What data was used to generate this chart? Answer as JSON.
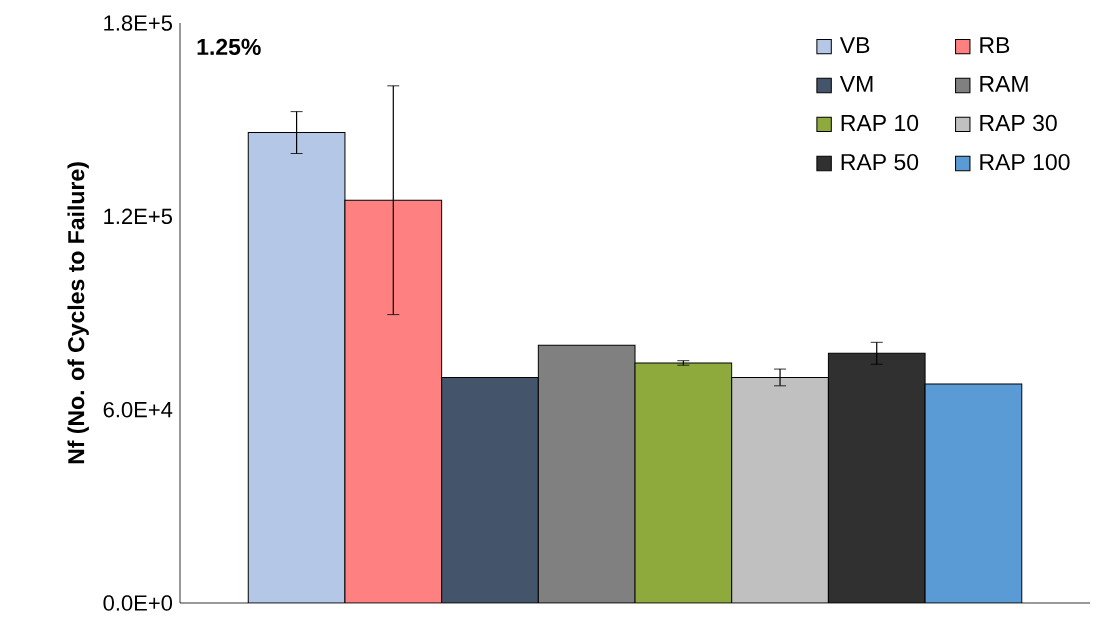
{
  "chart_data": {
    "type": "bar",
    "ylabel": "Nf (No. of Cycles to Failure)",
    "categories": [
      null
    ],
    "series": [
      {
        "name": "VB",
        "color": "#b4c7e7",
        "values": [
          146000
        ],
        "errors": [
          6500
        ]
      },
      {
        "name": "RB",
        "color": "#ff8080",
        "values": [
          125000
        ],
        "errors": [
          35500
        ]
      },
      {
        "name": "VM",
        "color": "#44546a",
        "values": [
          70000
        ],
        "errors": [
          null
        ]
      },
      {
        "name": "RAM",
        "color": "#808080",
        "values": [
          80000
        ],
        "errors": [
          null
        ]
      },
      {
        "name": "RAP 10",
        "color": "#8faa3c",
        "values": [
          74500
        ],
        "errors": [
          700
        ]
      },
      {
        "name": "RAP 30",
        "color": "#c0c0c0",
        "values": [
          70000
        ],
        "errors": [
          2600
        ]
      },
      {
        "name": "RAP 50",
        "color": "#303030",
        "values": [
          77500
        ],
        "errors": [
          3400
        ]
      },
      {
        "name": "RAP 100",
        "color": "#5b9bd5",
        "values": [
          68000
        ],
        "errors": [
          null
        ]
      }
    ],
    "ylim": [
      0,
      180000
    ],
    "yticks": [
      {
        "value": 0,
        "label": "0.0E+0"
      },
      {
        "value": 60000,
        "label": "6.0E+4"
      },
      {
        "value": 120000,
        "label": "1.2E+5"
      },
      {
        "value": 180000,
        "label": "1.8E+5"
      }
    ],
    "annotations": [
      "1.25%"
    ],
    "legend": "top right",
    "grid": false
  }
}
